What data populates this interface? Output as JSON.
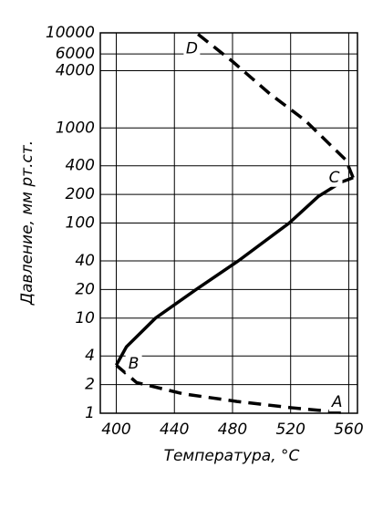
{
  "chart_data": {
    "type": "line",
    "x_label": "Температура, °С",
    "y_label": "Давление, мм рт.ст.",
    "xlim": [
      389,
      566
    ],
    "xticks": [
      400,
      440,
      480,
      520,
      560
    ],
    "ylim": [
      1,
      10000
    ],
    "ylog": true,
    "yticks": [
      1,
      2,
      4,
      10,
      20,
      40,
      100,
      200,
      400,
      1000,
      4000,
      6000,
      10000
    ],
    "grid": true,
    "series": [
      {
        "color": "#000000",
        "dashed": false,
        "x": [
          400,
          407,
          427,
          455,
          484,
          519,
          539,
          555,
          563
        ],
        "values": [
          3.2,
          5,
          10,
          20,
          40,
          100,
          190,
          270,
          300
        ]
      },
      {
        "color": "#000000",
        "dashed": true,
        "x": [
          563,
          558,
          530,
          505.6,
          480,
          455
        ],
        "values": [
          300,
          460,
          1200,
          2290,
          5000,
          10000
        ]
      },
      {
        "color": "#000000",
        "dashed": true,
        "x": [
          400,
          414,
          446,
          483,
          521,
          555
        ],
        "values": [
          3.2,
          2.1,
          1.6,
          1.33,
          1.14,
          1.02
        ]
      }
    ],
    "annotations": [
      {
        "text": "A",
        "x": 552,
        "y": 1.3
      },
      {
        "text": "B",
        "x": 412,
        "y": 3.3
      },
      {
        "text": "C",
        "x": 550,
        "y": 300
      },
      {
        "text": "D",
        "x": 452,
        "y": 6800
      }
    ]
  }
}
